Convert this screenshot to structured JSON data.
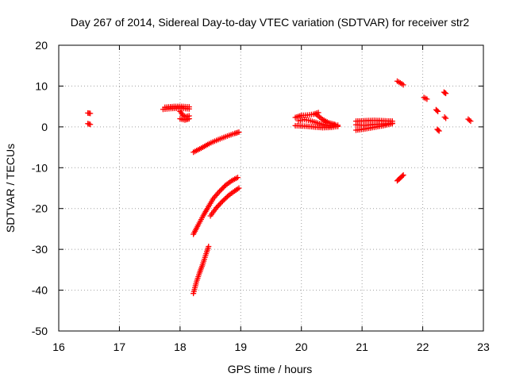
{
  "chart_data": {
    "type": "scatter",
    "title": "Day 267 of 2014, Sidereal Day-to-day VTEC variation (SDTVAR) for receiver str2",
    "xlabel": "GPS time / hours",
    "ylabel": "SDTVAR / TECUs",
    "xlim": [
      16,
      23
    ],
    "ylim": [
      -50,
      20
    ],
    "xticks": [
      "16",
      "17",
      "18",
      "19",
      "20",
      "21",
      "22",
      "23"
    ],
    "yticks": [
      "20",
      "10",
      "0",
      "-10",
      "-20",
      "-30",
      "-40",
      "-50"
    ],
    "grid": true,
    "marker": "plus",
    "color": "#ff0000",
    "series": [
      {
        "name": "s1",
        "segments": [
          [
            [
              16.48,
              3.4
            ],
            [
              16.52,
              3.3
            ]
          ],
          [
            [
              16.48,
              0.8
            ],
            [
              16.52,
              0.6
            ]
          ]
        ]
      },
      {
        "name": "s2",
        "segments": [
          [
            [
              17.72,
              4.3
            ],
            [
              17.85,
              4.5
            ],
            [
              18.0,
              4.6
            ],
            [
              18.15,
              4.4
            ]
          ],
          [
            [
              17.75,
              4.8
            ],
            [
              17.9,
              5.0
            ],
            [
              18.05,
              5.0
            ],
            [
              18.15,
              4.9
            ]
          ],
          [
            [
              18.0,
              3.8
            ],
            [
              18.05,
              2.8
            ],
            [
              18.1,
              2.5
            ],
            [
              18.15,
              2.7
            ]
          ],
          [
            [
              18.0,
              2.0
            ],
            [
              18.08,
              1.7
            ],
            [
              18.15,
              2.0
            ]
          ]
        ]
      },
      {
        "name": "s3",
        "segments": [
          [
            [
              18.22,
              -6.2
            ],
            [
              18.35,
              -5.2
            ],
            [
              18.48,
              -4.1
            ],
            [
              18.6,
              -3.3
            ],
            [
              18.75,
              -2.4
            ],
            [
              18.9,
              -1.6
            ],
            [
              18.97,
              -1.3
            ]
          ],
          [
            [
              18.22,
              -26.3
            ],
            [
              18.3,
              -24.0
            ],
            [
              18.38,
              -21.8
            ],
            [
              18.45,
              -20.0
            ],
            [
              18.55,
              -17.5
            ],
            [
              18.65,
              -15.8
            ],
            [
              18.75,
              -14.3
            ],
            [
              18.85,
              -13.2
            ],
            [
              18.95,
              -12.4
            ]
          ],
          [
            [
              18.5,
              -21.8
            ],
            [
              18.6,
              -19.8
            ],
            [
              18.7,
              -18.2
            ],
            [
              18.8,
              -16.8
            ],
            [
              18.9,
              -15.7
            ],
            [
              18.97,
              -15.0
            ]
          ],
          [
            [
              18.22,
              -40.8
            ],
            [
              18.27,
              -38.0
            ],
            [
              18.32,
              -35.8
            ],
            [
              18.37,
              -33.8
            ],
            [
              18.42,
              -31.5
            ],
            [
              18.47,
              -29.3
            ]
          ]
        ]
      },
      {
        "name": "s4",
        "segments": [
          [
            [
              19.9,
              2.3
            ],
            [
              20.0,
              2.8
            ],
            [
              20.1,
              2.9
            ],
            [
              20.2,
              3.1
            ],
            [
              20.28,
              3.5
            ]
          ],
          [
            [
              19.9,
              0.3
            ],
            [
              20.05,
              0.2
            ],
            [
              20.2,
              0.0
            ],
            [
              20.35,
              -0.2
            ],
            [
              20.5,
              -0.1
            ],
            [
              20.6,
              0.1
            ]
          ],
          [
            [
              19.95,
              1.5
            ],
            [
              20.05,
              1.8
            ],
            [
              20.15,
              1.5
            ],
            [
              20.3,
              0.8
            ],
            [
              20.45,
              0.3
            ],
            [
              20.6,
              0.4
            ]
          ],
          [
            [
              20.25,
              3.0
            ],
            [
              20.35,
              1.8
            ],
            [
              20.45,
              1.0
            ],
            [
              20.55,
              0.6
            ]
          ]
        ]
      },
      {
        "name": "s5",
        "segments": [
          [
            [
              20.9,
              -0.8
            ],
            [
              21.05,
              -0.5
            ],
            [
              21.2,
              -0.1
            ],
            [
              21.35,
              0.3
            ],
            [
              21.5,
              0.8
            ]
          ],
          [
            [
              20.9,
              0.5
            ],
            [
              21.05,
              0.4
            ],
            [
              21.2,
              0.6
            ],
            [
              21.35,
              0.7
            ],
            [
              21.5,
              0.9
            ]
          ],
          [
            [
              20.9,
              1.4
            ],
            [
              21.05,
              1.5
            ],
            [
              21.2,
              1.6
            ],
            [
              21.35,
              1.5
            ],
            [
              21.5,
              1.4
            ]
          ]
        ]
      },
      {
        "name": "s6",
        "segments": [
          [
            [
              21.58,
              11.2
            ],
            [
              21.63,
              10.8
            ],
            [
              21.68,
              10.3
            ]
          ],
          [
            [
              21.58,
              -13.2
            ],
            [
              21.63,
              -12.5
            ],
            [
              21.68,
              -11.8
            ]
          ],
          [
            [
              22.02,
              7.2
            ],
            [
              22.07,
              6.8
            ]
          ],
          [
            [
              22.22,
              4.2
            ],
            [
              22.25,
              3.8
            ]
          ],
          [
            [
              22.24,
              -0.6
            ],
            [
              22.27,
              -1.0
            ]
          ],
          [
            [
              22.35,
              8.5
            ],
            [
              22.38,
              8.2
            ]
          ],
          [
            [
              22.36,
              2.4
            ],
            [
              22.38,
              2.1
            ]
          ],
          [
            [
              22.75,
              1.9
            ],
            [
              22.79,
              1.4
            ]
          ]
        ]
      }
    ]
  }
}
